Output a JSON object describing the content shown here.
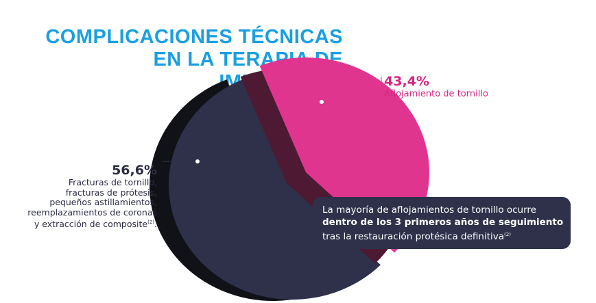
{
  "chart_data": {
    "type": "pie",
    "title": "COMPLICACIONES TÉCNICAS EN LA TERAPIA DE IMPLANTES.",
    "title_lines": [
      "COMPLICACIONES TÉCNICAS",
      "EN LA TERAPIA DE IMPLANTES."
    ],
    "series": [
      {
        "name": "Aflojamiento de tornillo",
        "value": 43.4,
        "value_label": "43,4%",
        "description_lines": [
          "Aflojamiento de tornillo"
        ],
        "color": "#e0358f",
        "side_color": "#4e1a33"
      },
      {
        "name": "Fracturas de tornillo, fracturas de prótesis, pequeños astillamientos, reemplazamientos de coronas y extracción de composite",
        "value": 56.6,
        "value_label": "56,6%",
        "description_lines": [
          "Fracturas de tornillo,",
          "fracturas de prótesis,",
          "pequeños astillamientos,",
          "reemplazamientos de coronas",
          "y extracción de composite"
        ],
        "superscript": "(2)",
        "color": "#2e3149",
        "side_color": "#111218"
      }
    ],
    "annotation": {
      "lines": [
        "La mayoría de aflojamientos de tornillo ocurre",
        "dentro de los 3 primeros años de seguimiento",
        "tras la restauración protésica definitiva"
      ],
      "superscript": "(2)"
    }
  }
}
